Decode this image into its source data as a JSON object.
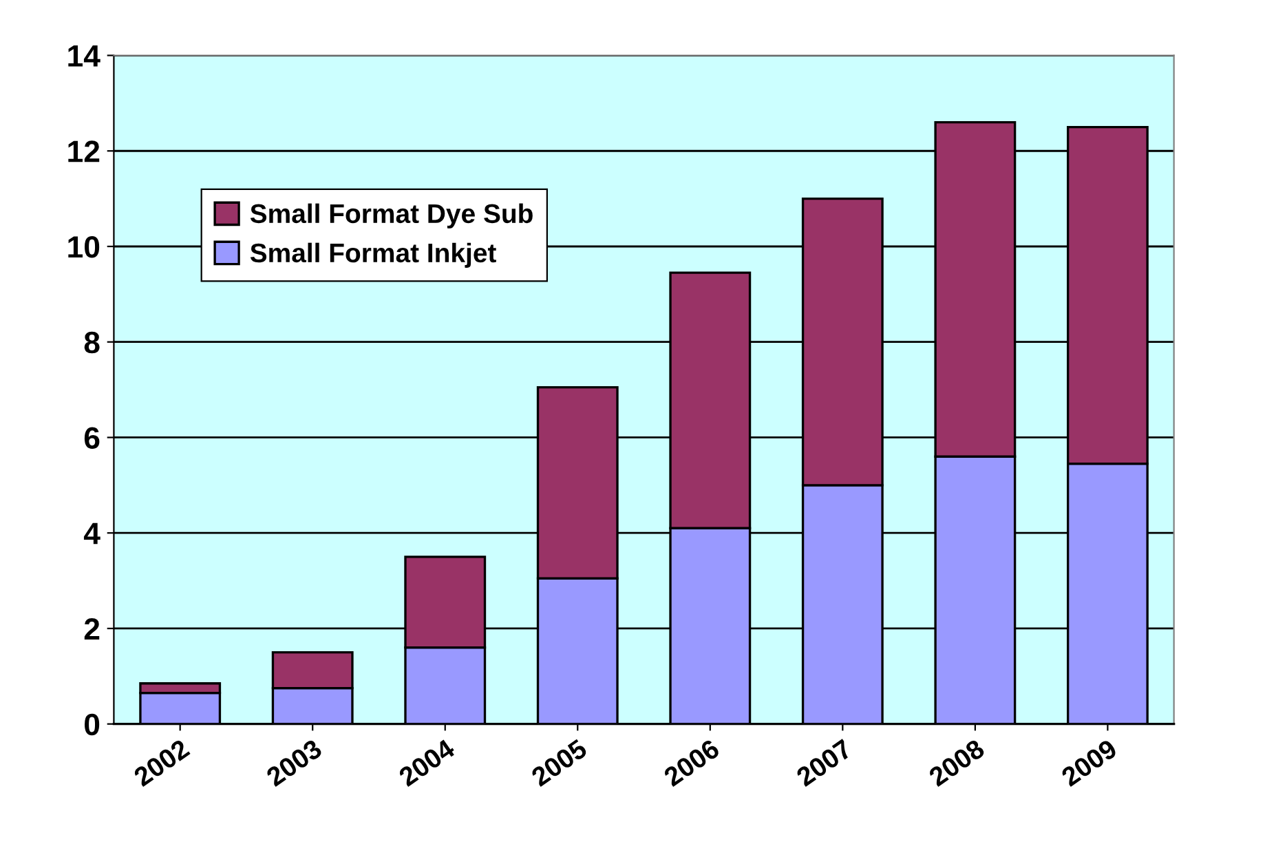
{
  "chart_data": {
    "type": "bar",
    "stacked": true,
    "categories": [
      "2002",
      "2003",
      "2004",
      "2005",
      "2006",
      "2007",
      "2008",
      "2009"
    ],
    "series": [
      {
        "name": "Small Format Inkjet",
        "color": "#9999ff",
        "values": [
          0.65,
          0.75,
          1.6,
          3.05,
          4.1,
          5.0,
          5.6,
          5.45
        ]
      },
      {
        "name": "Small Format Dye Sub",
        "color": "#993366",
        "values": [
          0.2,
          0.75,
          1.9,
          4.0,
          5.35,
          6.0,
          7.0,
          7.05
        ]
      }
    ],
    "ylim": [
      0,
      14
    ],
    "yticks": [
      0,
      2,
      4,
      6,
      8,
      10,
      12,
      14
    ],
    "grid": "y",
    "legend": "top left"
  }
}
